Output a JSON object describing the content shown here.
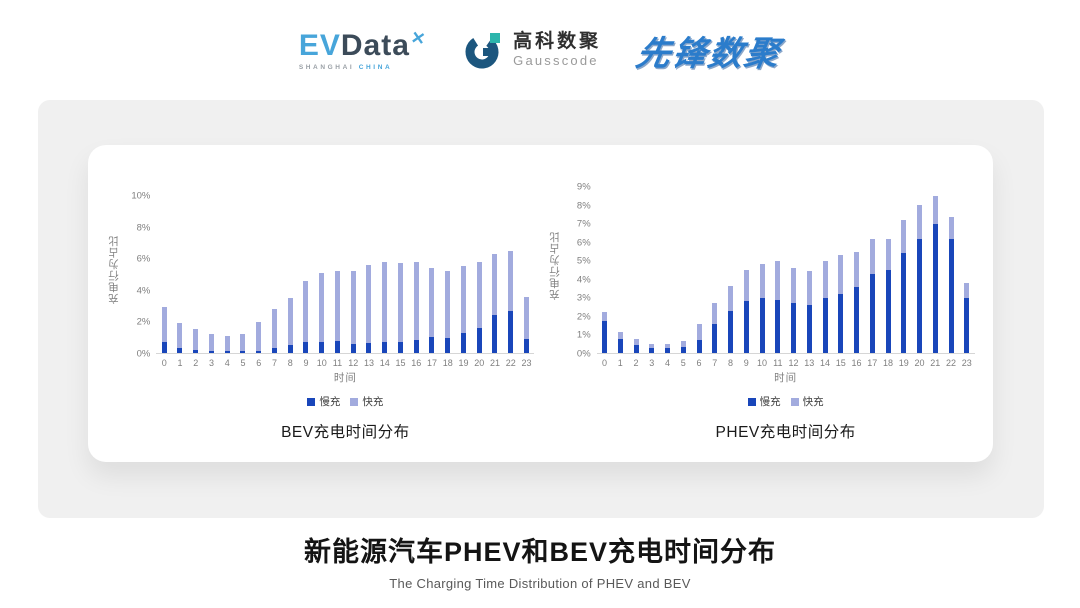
{
  "header": {
    "evdata_logo": {
      "ev": "EV",
      "data": "Data",
      "mark": "✕",
      "sub_left": "SHANGHAI",
      "sub_right": "CHINA"
    },
    "gausscode_logo": {
      "cn": "高科数聚",
      "en": "Gausscode"
    },
    "xianfeng_logo": {
      "text": "先锋数聚"
    }
  },
  "chart_data": [
    {
      "type": "bar",
      "stacked": true,
      "title": "BEV充电时间分布",
      "xlabel": "时间",
      "ylabel": "充电行为占比",
      "grid": false,
      "legend_position": "bottom",
      "ylim": [
        0,
        10
      ],
      "yticks": [
        {
          "value": 0,
          "label": "0%"
        },
        {
          "value": 2,
          "label": "2%"
        },
        {
          "value": 4,
          "label": "4%"
        },
        {
          "value": 6,
          "label": "6%"
        },
        {
          "value": 8,
          "label": "8%"
        },
        {
          "value": 10,
          "label": "10%"
        }
      ],
      "categories": [
        0,
        1,
        2,
        3,
        4,
        5,
        6,
        7,
        8,
        9,
        10,
        11,
        12,
        13,
        14,
        15,
        16,
        17,
        18,
        19,
        20,
        21,
        22,
        23
      ],
      "series": [
        {
          "name": "慢充",
          "color": "#1946ba",
          "values": [
            0.7,
            0.35,
            0.2,
            0.1,
            0.1,
            0.1,
            0.15,
            0.35,
            0.5,
            0.7,
            0.7,
            0.75,
            0.6,
            0.65,
            0.7,
            0.7,
            0.85,
            1.0,
            0.95,
            1.3,
            1.6,
            2.4,
            2.7,
            0.9
          ]
        },
        {
          "name": "快充",
          "color": "#a2abde",
          "values": [
            2.2,
            1.55,
            1.3,
            1.1,
            1.0,
            1.1,
            1.85,
            2.45,
            3.0,
            3.9,
            4.4,
            4.45,
            4.6,
            4.95,
            5.1,
            5.05,
            4.95,
            4.4,
            4.3,
            4.25,
            4.2,
            3.9,
            3.8,
            2.7
          ]
        }
      ]
    },
    {
      "type": "bar",
      "stacked": true,
      "title": "PHEV充电时间分布",
      "xlabel": "时间",
      "ylabel": "充电行为占比",
      "grid": false,
      "legend_position": "bottom",
      "ylim": [
        0,
        9
      ],
      "yticks": [
        {
          "value": 0,
          "label": "0%"
        },
        {
          "value": 1,
          "label": "1%"
        },
        {
          "value": 2,
          "label": "2%"
        },
        {
          "value": 3,
          "label": "3%"
        },
        {
          "value": 4,
          "label": "4%"
        },
        {
          "value": 5,
          "label": "5%"
        },
        {
          "value": 6,
          "label": "6%"
        },
        {
          "value": 7,
          "label": "7%"
        },
        {
          "value": 8,
          "label": "8%"
        },
        {
          "value": 9,
          "label": "9%"
        }
      ],
      "categories": [
        0,
        1,
        2,
        3,
        4,
        5,
        6,
        7,
        8,
        9,
        10,
        11,
        12,
        13,
        14,
        15,
        16,
        17,
        18,
        19,
        20,
        21,
        22,
        23
      ],
      "series": [
        {
          "name": "慢充",
          "color": "#1946ba",
          "values": [
            1.75,
            0.75,
            0.45,
            0.25,
            0.25,
            0.3,
            0.7,
            1.6,
            2.3,
            2.8,
            3.0,
            2.9,
            2.7,
            2.6,
            3.0,
            3.2,
            3.6,
            4.3,
            4.5,
            5.4,
            6.2,
            7.0,
            6.2,
            3.0
          ]
        },
        {
          "name": "快充",
          "color": "#a2abde",
          "values": [
            0.45,
            0.4,
            0.3,
            0.25,
            0.25,
            0.35,
            0.9,
            1.1,
            1.35,
            1.7,
            1.8,
            2.1,
            1.9,
            1.85,
            2.0,
            2.1,
            1.9,
            1.9,
            1.7,
            1.8,
            1.8,
            1.5,
            1.2,
            0.8
          ]
        }
      ]
    }
  ],
  "footer": {
    "title": "新能源汽车PHEV和BEV充电时间分布",
    "subtitle": "The Charging Time Distribution of PHEV and BEV"
  }
}
